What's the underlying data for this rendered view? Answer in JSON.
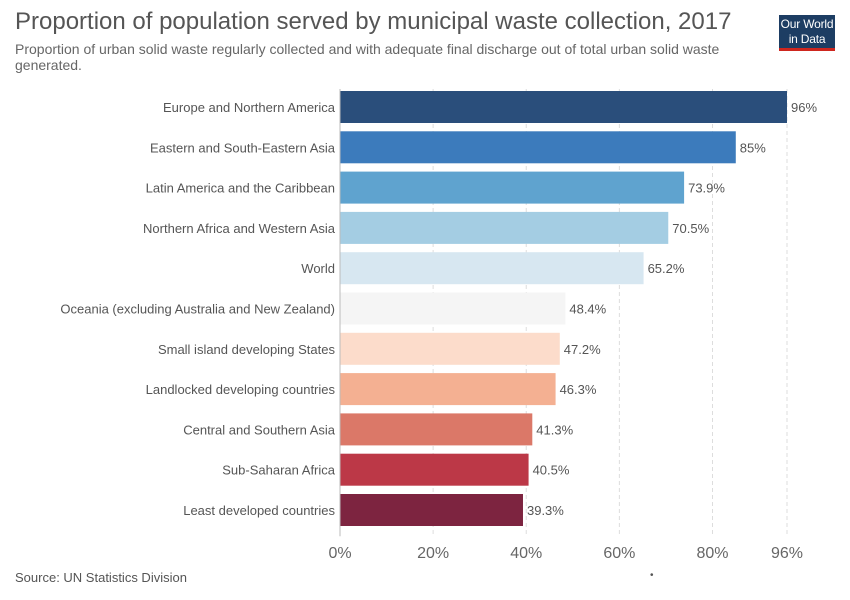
{
  "header": {
    "title": "Proportion of population served by municipal waste collection, 2017",
    "subtitle": "Proportion of urban solid waste regularly collected and with adequate final discharge out of total urban solid waste generated."
  },
  "logo": {
    "line1": "Our World",
    "line2": "in Data",
    "bg_color": "#1d3d63",
    "accent_color": "#ce261e"
  },
  "footer": {
    "source": "Source: UN Statistics Division",
    "dot": "•"
  },
  "chart_data": {
    "type": "bar",
    "orientation": "horizontal",
    "title": "Proportion of population served by municipal waste collection, 2017",
    "categories": [
      "Europe and Northern America",
      "Eastern and South-Eastern Asia",
      "Latin America and the Caribbean",
      "Northern Africa and Western Asia",
      "World",
      "Oceania (excluding Australia and New Zealand)",
      "Small island developing States",
      "Landlocked developing countries",
      "Central and Southern Asia",
      "Sub-Saharan Africa",
      "Least developed countries"
    ],
    "values": [
      96,
      85,
      73.9,
      70.5,
      65.2,
      48.4,
      47.2,
      46.3,
      41.3,
      40.5,
      39.3
    ],
    "value_labels": [
      "96%",
      "85%",
      "73.9%",
      "70.5%",
      "65.2%",
      "48.4%",
      "47.2%",
      "46.3%",
      "41.3%",
      "40.5%",
      "39.3%"
    ],
    "colors": [
      "#2a4e7b",
      "#3c7bbc",
      "#5fa3cf",
      "#a4cde3",
      "#d7e7f1",
      "#f5f5f5",
      "#fcdccb",
      "#f4b092",
      "#db7868",
      "#bc3847",
      "#7d2440"
    ],
    "xlim": [
      0,
      96
    ],
    "xticks": [
      0,
      20,
      40,
      60,
      80,
      96
    ],
    "xtick_labels": [
      "0%",
      "20%",
      "40%",
      "60%",
      "80%",
      "96%"
    ],
    "grid": true
  }
}
